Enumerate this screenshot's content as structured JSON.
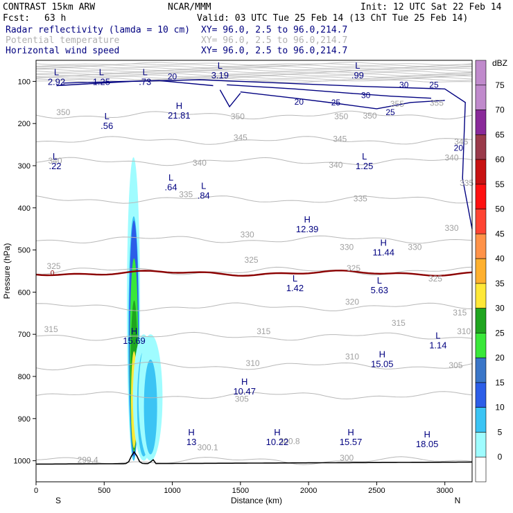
{
  "header": {
    "model": "CONTRAST 15km ARW",
    "center": "NCAR/MMM",
    "init": "Init: 12 UTC Sat 22 Feb 14",
    "fcst_label": "Fcst:",
    "fcst_value": "63 h",
    "valid": "Valid: 03 UTC Tue 25 Feb 14 (13 ChT Tue 25 Feb 14)"
  },
  "fields": [
    {
      "label": "Radar reflectivity (lamda = 10 cm)",
      "xy": "XY=  96.0,  2.5 to  96.0,214.7",
      "color": "#000080"
    },
    {
      "label": "Potential temperature",
      "xy": "XY=  96.0,  2.5 to  96.0,214.7",
      "color": "#b0b0b0"
    },
    {
      "label": "Horizontal wind speed",
      "xy": "XY=  96.0,  2.5 to  96.0,214.7",
      "color": "#000080"
    }
  ],
  "chart_data": {
    "type": "cross-section",
    "xlabel": "Distance (km)",
    "ylabel": "Pressure (hPa)",
    "x_ticks": [
      0,
      500,
      1000,
      1500,
      2000,
      2500,
      3000
    ],
    "xlim": [
      0,
      3200
    ],
    "y_ticks": [
      100,
      200,
      300,
      400,
      500,
      600,
      700,
      800,
      900,
      1000
    ],
    "ylim": [
      50,
      1050
    ],
    "x_start_label": "S",
    "x_end_label": "N",
    "colorbar": {
      "title": "dBZ",
      "levels": [
        0,
        5,
        10,
        15,
        20,
        25,
        30,
        35,
        40,
        45,
        50,
        55,
        60,
        65,
        70,
        75
      ],
      "colors": [
        "#ffffff",
        "#9ffcff",
        "#3bc4f4",
        "#2c5ee8",
        "#3a76c8",
        "#39e839",
        "#1fa51f",
        "#ffe838",
        "#ffb02e",
        "#ff9248",
        "#ff4433",
        "#ff1010",
        "#c81212",
        "#9a3a4a",
        "#8a2a9a",
        "#c08acc"
      ]
    },
    "theta_contours": [
      {
        "value": "350",
        "p": 180
      },
      {
        "value": "345",
        "p": 240
      },
      {
        "value": "340",
        "p": 290
      },
      {
        "value": "335",
        "p": 380
      },
      {
        "value": "330",
        "p": 475
      },
      {
        "value": "325",
        "p": 550
      },
      {
        "value": "320",
        "p": 635
      },
      {
        "value": "315",
        "p": 705
      },
      {
        "value": "310",
        "p": 775
      },
      {
        "value": "305",
        "p": 845
      },
      {
        "value": "300",
        "p": 1000
      }
    ],
    "theta_labels": [
      {
        "text": "350",
        "x": 200,
        "p": 180
      },
      {
        "text": "350",
        "x": 1480,
        "p": 190
      },
      {
        "text": "350",
        "x": 2240,
        "p": 190
      },
      {
        "text": "350",
        "x": 2450,
        "p": 188
      },
      {
        "text": "355",
        "x": 2650,
        "p": 160
      },
      {
        "text": "355",
        "x": 2940,
        "p": 158
      },
      {
        "text": "345",
        "x": 1500,
        "p": 240
      },
      {
        "text": "345",
        "x": 2230,
        "p": 243
      },
      {
        "text": "345",
        "x": 3120,
        "p": 250
      },
      {
        "text": "340",
        "x": 140,
        "p": 295
      },
      {
        "text": "340",
        "x": 1200,
        "p": 300
      },
      {
        "text": "340",
        "x": 2200,
        "p": 305
      },
      {
        "text": "340",
        "x": 3050,
        "p": 288
      },
      {
        "text": "335",
        "x": 1100,
        "p": 375
      },
      {
        "text": "335",
        "x": 2380,
        "p": 385
      },
      {
        "text": "335",
        "x": 3160,
        "p": 348
      },
      {
        "text": "330",
        "x": 1550,
        "p": 470
      },
      {
        "text": "330",
        "x": 2280,
        "p": 500
      },
      {
        "text": "330",
        "x": 2780,
        "p": 500
      },
      {
        "text": "330",
        "x": 3050,
        "p": 455
      },
      {
        "text": "325",
        "x": 130,
        "p": 545
      },
      {
        "text": "325",
        "x": 1580,
        "p": 530
      },
      {
        "text": "325",
        "x": 2330,
        "p": 550
      },
      {
        "text": "325",
        "x": 2930,
        "p": 575
      },
      {
        "text": "320",
        "x": 2320,
        "p": 630
      },
      {
        "text": "315",
        "x": 110,
        "p": 695
      },
      {
        "text": "315",
        "x": 1670,
        "p": 700
      },
      {
        "text": "315",
        "x": 2660,
        "p": 680
      },
      {
        "text": "315",
        "x": 3110,
        "p": 655
      },
      {
        "text": "310",
        "x": 1590,
        "p": 775
      },
      {
        "text": "310",
        "x": 2320,
        "p": 760
      },
      {
        "text": "310",
        "x": 3140,
        "p": 700
      },
      {
        "text": "305",
        "x": 1510,
        "p": 860
      },
      {
        "text": "305",
        "x": 3080,
        "p": 780
      },
      {
        "text": "300",
        "x": 2280,
        "p": 1000
      },
      {
        "text": "300.1",
        "x": 1260,
        "p": 975
      },
      {
        "text": "300.8",
        "x": 1860,
        "p": 960
      },
      {
        "text": "299.4",
        "x": 380,
        "p": 1005
      }
    ],
    "wind_labels": [
      {
        "text": "20",
        "x": 1000,
        "p": 95
      },
      {
        "text": "20",
        "x": 1930,
        "p": 155
      },
      {
        "text": "25",
        "x": 2200,
        "p": 157
      },
      {
        "text": "30",
        "x": 2420,
        "p": 140
      },
      {
        "text": "30",
        "x": 2700,
        "p": 115
      },
      {
        "text": "25",
        "x": 2920,
        "p": 115
      },
      {
        "text": "25",
        "x": 2600,
        "p": 180
      },
      {
        "text": "20",
        "x": 3100,
        "p": 265
      }
    ],
    "freezing_level_label": {
      "text": "0",
      "x": 120,
      "p": 560
    },
    "extrema": [
      {
        "letter": "L",
        "value": "2.92",
        "x": 150,
        "p": 85
      },
      {
        "letter": "L",
        "value": "1.25",
        "x": 480,
        "p": 85
      },
      {
        "letter": "L",
        "value": ".73",
        "x": 800,
        "p": 85
      },
      {
        "letter": "L",
        "value": "3.19",
        "x": 1350,
        "p": 70
      },
      {
        "letter": "L",
        "value": ".99",
        "x": 2360,
        "p": 70
      },
      {
        "letter": "H",
        "value": "21.81",
        "x": 1050,
        "p": 165
      },
      {
        "letter": "L",
        "value": ".56",
        "x": 520,
        "p": 190
      },
      {
        "letter": "L",
        "value": ".22",
        "x": 140,
        "p": 285
      },
      {
        "letter": "L",
        "value": "1.25",
        "x": 2410,
        "p": 285
      },
      {
        "letter": "L",
        "value": ".64",
        "x": 990,
        "p": 335
      },
      {
        "letter": "L",
        "value": ".84",
        "x": 1230,
        "p": 355
      },
      {
        "letter": "H",
        "value": "12.39",
        "x": 1990,
        "p": 435
      },
      {
        "letter": "H",
        "value": "11.44",
        "x": 2550,
        "p": 490
      },
      {
        "letter": "L",
        "value": "1.42",
        "x": 1900,
        "p": 575
      },
      {
        "letter": "L",
        "value": "5.63",
        "x": 2520,
        "p": 580
      },
      {
        "letter": "H",
        "value": "15.69",
        "x": 720,
        "p": 700
      },
      {
        "letter": "L",
        "value": "1.14",
        "x": 2950,
        "p": 710
      },
      {
        "letter": "H",
        "value": "15.05",
        "x": 2540,
        "p": 755
      },
      {
        "letter": "H",
        "value": "10.47",
        "x": 1530,
        "p": 820
      },
      {
        "letter": "H",
        "value": "13",
        "x": 1140,
        "p": 940
      },
      {
        "letter": "H",
        "value": "10.22",
        "x": 1770,
        "p": 940
      },
      {
        "letter": "H",
        "value": "15.57",
        "x": 2310,
        "p": 940
      },
      {
        "letter": "H",
        "value": "18.05",
        "x": 2870,
        "p": 945
      }
    ]
  }
}
